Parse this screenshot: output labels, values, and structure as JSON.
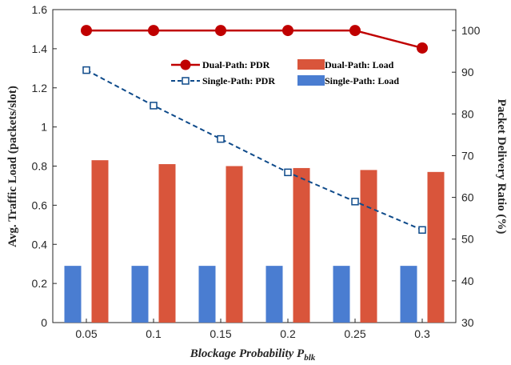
{
  "chart_data": {
    "type": "bar",
    "categories": [
      "0.05",
      "0.1",
      "0.15",
      "0.2",
      "0.25",
      "0.3"
    ],
    "xlabel": "Blockage Probability P",
    "xlabel_sub": "blk",
    "ylabel_left": "Avg. Traffic Load (packets/slot)",
    "ylabel_right": "Packet Delivery Ratio (%)",
    "ylim_left": [
      0,
      1.6
    ],
    "ylim_right": [
      30,
      105
    ],
    "yticks_left": [
      "0",
      "0.2",
      "0.4",
      "0.6",
      "0.8",
      "1",
      "1.2",
      "1.4",
      "1.6"
    ],
    "yticks_right": [
      "30",
      "40",
      "50",
      "60",
      "70",
      "80",
      "90",
      "100"
    ],
    "bar_series": [
      {
        "name": "Single-Path: Load",
        "color": "#4a7dd1",
        "values": [
          0.29,
          0.29,
          0.29,
          0.29,
          0.29,
          0.29
        ]
      },
      {
        "name": "Dual-Path: Load",
        "color": "#d9553b",
        "values": [
          0.83,
          0.81,
          0.8,
          0.79,
          0.78,
          0.77
        ]
      }
    ],
    "line_series": [
      {
        "name": "Dual-Path: PDR",
        "color": "#c00000",
        "marker": "filled-circle",
        "style": "solid",
        "values": [
          100,
          100,
          100,
          100,
          100,
          95.8
        ]
      },
      {
        "name": "Single-Path: PDR",
        "color": "#0e4a8a",
        "marker": "open-square",
        "style": "dashed",
        "values": [
          90.5,
          82,
          74,
          66,
          59,
          52.2
        ]
      }
    ],
    "grid": false,
    "legend_position": "top-right"
  }
}
